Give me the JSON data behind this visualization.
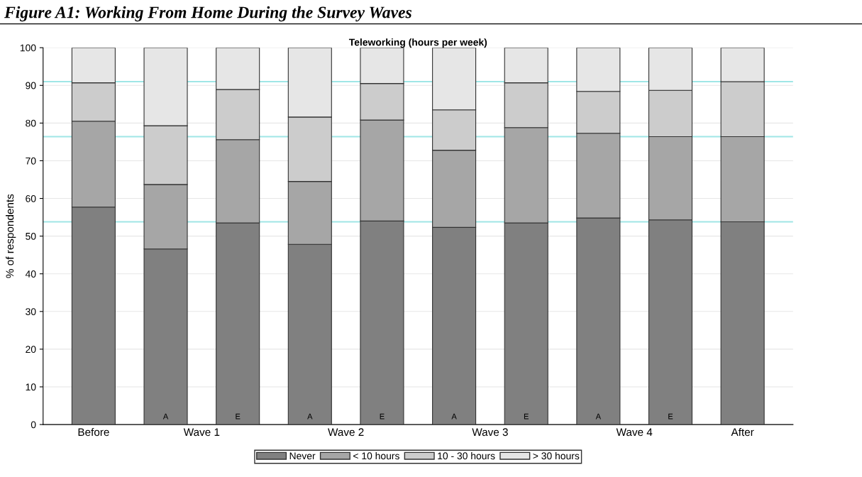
{
  "chart_data": {
    "type": "bar",
    "stacked": true,
    "title": "Figure A1: Working From Home During the Survey Waves",
    "subtitle": "Teleworking (hours per week)",
    "ylabel": "% of respondents",
    "categories": [
      "Before",
      "A",
      "E",
      "A",
      "E",
      "A",
      "E",
      "A",
      "E",
      "After"
    ],
    "annotations": [
      "Wave 1",
      "Wave 2",
      "Wave 3",
      "Wave 4"
    ],
    "series": [
      {
        "name": "Never",
        "color": "#808080",
        "values": [
          57.7,
          46.6,
          53.5,
          47.8,
          54.0,
          52.3,
          53.5,
          54.8,
          54.3,
          53.8
        ]
      },
      {
        "name": "< 10 hours",
        "color": "#a6a6a6",
        "values": [
          22.8,
          17.1,
          22.1,
          16.7,
          26.8,
          20.5,
          25.3,
          22.5,
          22.1,
          22.6
        ]
      },
      {
        "name": "10 - 30 hours",
        "color": "#cccccc",
        "values": [
          10.2,
          15.6,
          13.3,
          17.1,
          9.7,
          10.7,
          11.9,
          11.1,
          12.3,
          14.6
        ]
      },
      {
        "name": "> 30 hours",
        "color": "#e6e6e6",
        "values": [
          9.3,
          20.7,
          11.1,
          18.4,
          9.5,
          16.5,
          9.3,
          11.6,
          11.3,
          9.0
        ]
      }
    ],
    "ylim": [
      0,
      100
    ],
    "yticks": [
      0,
      10,
      20,
      30,
      40,
      50,
      60,
      70,
      80,
      90,
      100
    ],
    "ref_lines": [
      {
        "axis": "y",
        "value": 53.8,
        "color": "#a0e6e6"
      },
      {
        "axis": "y",
        "value": 76.4,
        "color": "#a0e6e6"
      },
      {
        "axis": "y",
        "value": 91.0,
        "color": "#a0e6e6"
      }
    ],
    "grid": "y",
    "legend": "bottom"
  }
}
